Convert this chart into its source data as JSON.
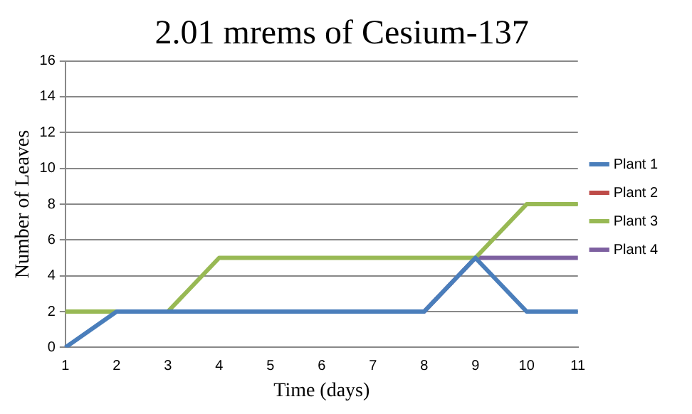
{
  "chart_data": {
    "type": "line",
    "title": "2.01 mrems of Cesium-137",
    "xlabel": "Time (days)",
    "ylabel": "Number of Leaves",
    "categories": [
      "1",
      "2",
      "3",
      "4",
      "5",
      "6",
      "7",
      "8",
      "9",
      "10",
      "11"
    ],
    "series": [
      {
        "name": "Plant 1",
        "color": "#4a7ebb",
        "values": [
          0,
          2,
          2,
          2,
          2,
          2,
          2,
          2,
          5,
          2,
          2
        ]
      },
      {
        "name": "Plant 2",
        "color": "#be4b48",
        "values": [
          null,
          null,
          null,
          null,
          null,
          null,
          null,
          null,
          null,
          null,
          null
        ]
      },
      {
        "name": "Plant 3",
        "color": "#98b954",
        "values": [
          2,
          2,
          2,
          5,
          5,
          5,
          5,
          5,
          5,
          8,
          8
        ]
      },
      {
        "name": "Plant 4",
        "color": "#7d60a0",
        "values": [
          2,
          2,
          2,
          2,
          2,
          2,
          2,
          2,
          5,
          5,
          5
        ]
      }
    ],
    "ylim": [
      0,
      16
    ],
    "yticks": [
      0,
      2,
      4,
      6,
      8,
      10,
      12,
      14,
      16
    ],
    "grid": "y",
    "legend": "right",
    "marker": "none"
  }
}
